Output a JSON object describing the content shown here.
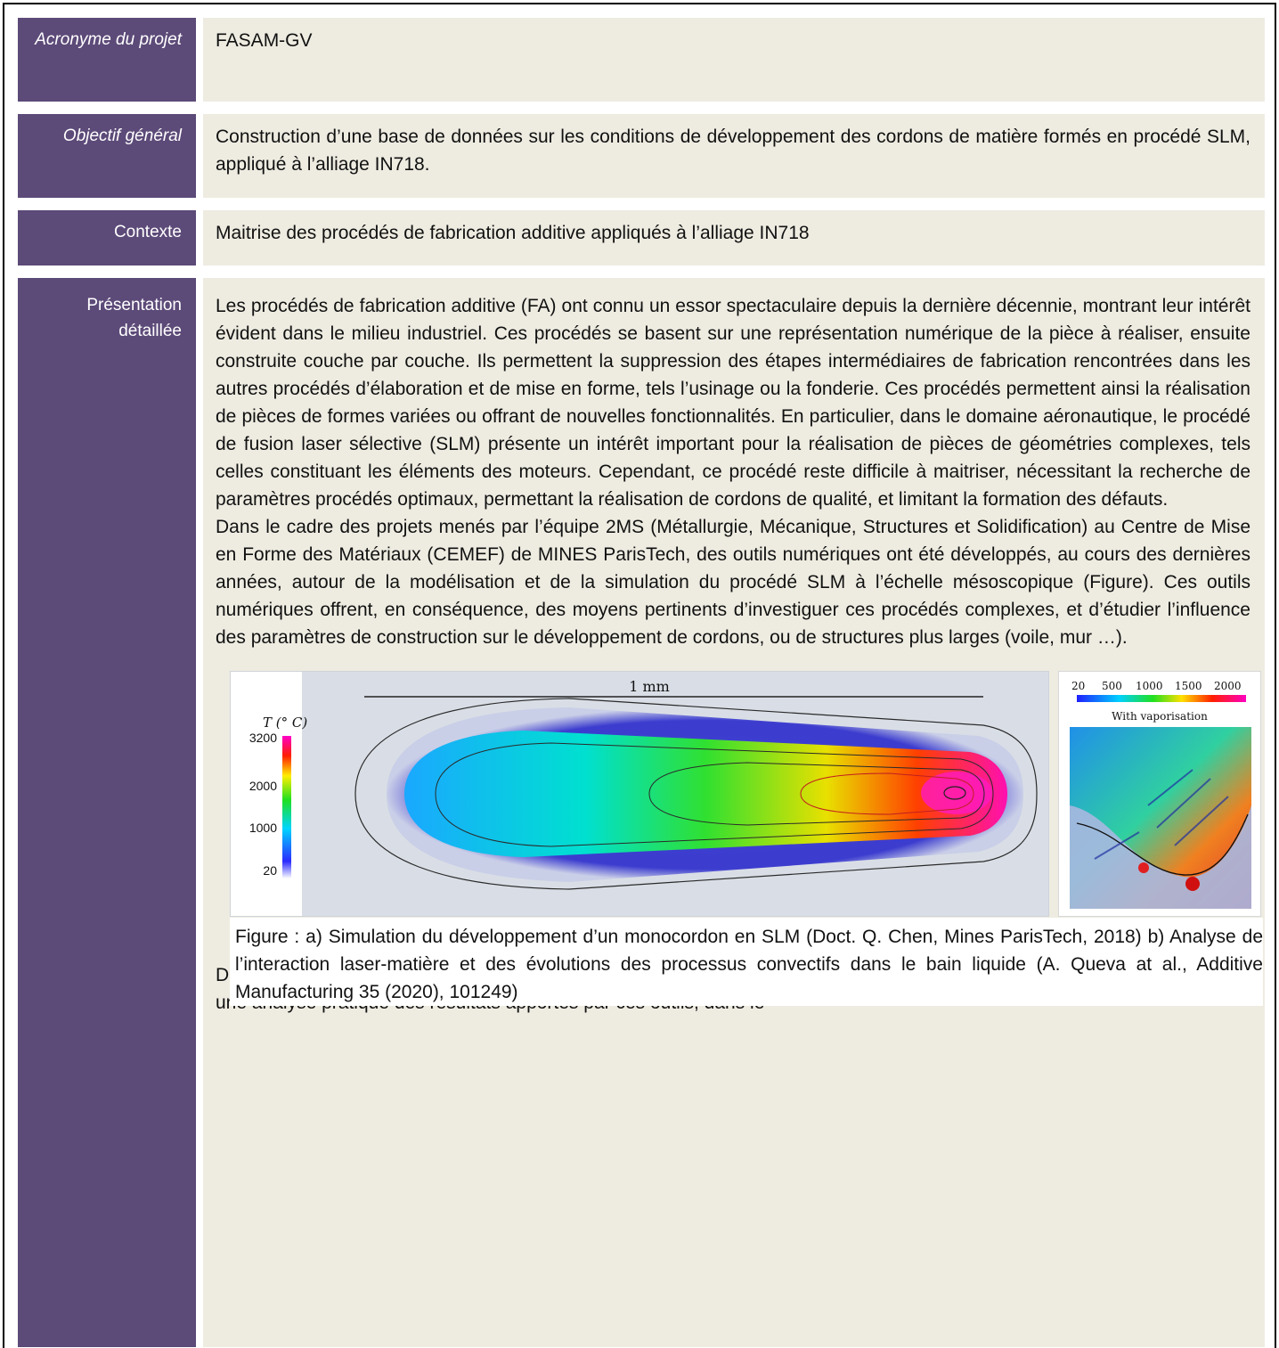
{
  "rows": [
    {
      "label": "Acronyme du projet",
      "content": "FASAM-GV"
    },
    {
      "label": "Objectif général",
      "content": "Construction d’une base de données sur les conditions de développement des cordons de matière formés en procédé SLM, appliqué à l’alliage IN718."
    },
    {
      "label": "Contexte",
      "content": "Maitrise des procédés de fabrication additive appliqués à l’alliage IN718"
    },
    {
      "label": "Présentation détaillée"
    }
  ],
  "presentation": {
    "paragraph1": "Les procédés de fabrication additive (FA) ont connu un essor spectaculaire depuis la dernière décennie, montrant leur intérêt évident dans le milieu industriel. Ces procédés se basent sur une représentation numérique de la pièce à réaliser, ensuite construite couche par couche. Ils permettent la suppression des étapes intermédiaires de fabrication rencontrées dans les autres procédés d’élaboration et de mise en forme, tels l’usinage ou la fonderie. Ces procédés permettent ainsi la réalisation de pièces de formes variées ou offrant de nouvelles fonctionnalités. En particulier, dans le domaine aéronautique, le procédé de fusion laser sélective (SLM) présente un intérêt important pour la réalisation de pièces de géométries complexes, tels celles constituant les éléments des moteurs. Cependant, ce procédé reste difficile à maitriser, nécessitant la recherche de paramètres procédés optimaux, permettant la réalisation de cordons de qualité, et limitant la formation des défauts.",
    "paragraph2": "Dans le cadre des projets menés par l’équipe 2MS (Métallurgie, Mécanique, Structures et Solidification) au Centre de Mise en Forme des Matériaux (CEMEF) de MINES ParisTech, des outils numériques ont été développés, au cours des dernières années, autour de la modélisation et de la simulation du procédé SLM à l’échelle mésoscopique (Figure). Ces outils numériques offrent, en conséquence, des moyens pertinents d’investiguer ces procédés complexes, et d’étudier l’influence des paramètres de construction sur le développement de cordons, ou de structures plus larges (voile, mur …).",
    "caption": "Figure : a) Simulation du développement d’un monocordon en SLM (Doct. Q. Chen, Mines ParisTech, 2018) b) Analyse de l’interaction laser-matière et des évolutions des processus convectifs dans le bain liquide (A. Queva at al., Additive Manufacturing 35 (2020), 101249)",
    "paragraph3": "Dans ce cadre, un projet de stage est proposé par SAFRAN Additive Manufacturing (SAM) et le CEMEF afin de développer une analyse pratique des résultats apportés par ces outils, dans le"
  },
  "figure_a": {
    "scale_bar": "1 mm",
    "colorbar_title": "T (° C)",
    "colorbar_ticks": [
      "3200",
      "2000",
      "1000",
      "20"
    ]
  },
  "figure_b": {
    "colorbar_ticks": [
      "20",
      "500",
      "1000",
      "1500",
      "2000"
    ],
    "subtitle": "With vaporisation"
  }
}
